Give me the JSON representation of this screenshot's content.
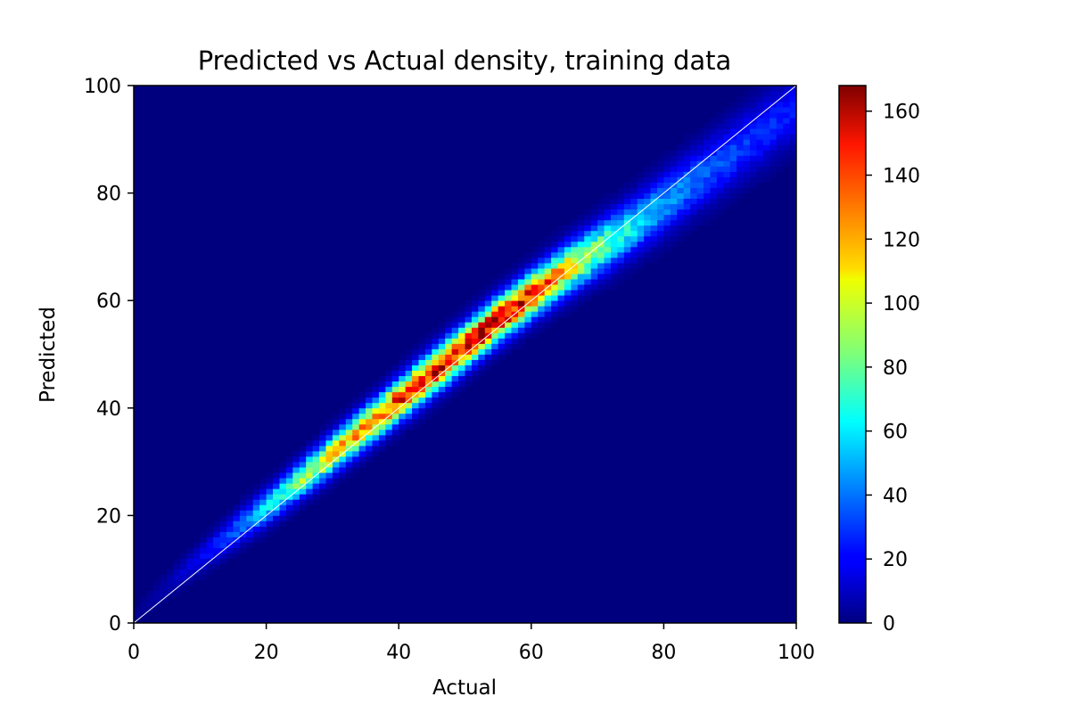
{
  "chart_data": {
    "type": "heatmap",
    "title": "Predicted vs Actual density, training data",
    "xlabel": "Actual",
    "ylabel": "Predicted",
    "xlim": [
      0,
      100
    ],
    "ylim": [
      0,
      100
    ],
    "x_ticks": [
      "0",
      "20",
      "40",
      "60",
      "80",
      "100"
    ],
    "y_ticks": [
      "0",
      "20",
      "40",
      "60",
      "80",
      "100"
    ],
    "colormap": "jet",
    "colorbar": {
      "range": [
        0,
        168
      ],
      "ticks": [
        "0",
        "20",
        "40",
        "60",
        "80",
        "100",
        "120",
        "140",
        "160"
      ]
    },
    "bins": 100,
    "background_value": 0,
    "reference_line": {
      "from": [
        0,
        0
      ],
      "to": [
        100,
        100
      ],
      "color": "#ffffff"
    },
    "density_ridge": [
      {
        "actual": 0,
        "predicted_center": 1,
        "count": 2,
        "spread": 1.2
      },
      {
        "actual": 5,
        "predicted_center": 7,
        "count": 8,
        "spread": 1.5
      },
      {
        "actual": 10,
        "predicted_center": 12,
        "count": 18,
        "spread": 1.8
      },
      {
        "actual": 15,
        "predicted_center": 17,
        "count": 35,
        "spread": 2.0
      },
      {
        "actual": 20,
        "predicted_center": 21.5,
        "count": 58,
        "spread": 2.1
      },
      {
        "actual": 25,
        "predicted_center": 26.5,
        "count": 85,
        "spread": 2.2
      },
      {
        "actual": 30,
        "predicted_center": 31.5,
        "count": 110,
        "spread": 2.3
      },
      {
        "actual": 35,
        "predicted_center": 36.5,
        "count": 125,
        "spread": 2.4
      },
      {
        "actual": 40,
        "predicted_center": 41.5,
        "count": 138,
        "spread": 2.5
      },
      {
        "actual": 45,
        "predicted_center": 46.5,
        "count": 150,
        "spread": 2.6
      },
      {
        "actual": 50,
        "predicted_center": 51.5,
        "count": 158,
        "spread": 2.6
      },
      {
        "actual": 55,
        "predicted_center": 56.5,
        "count": 160,
        "spread": 2.6
      },
      {
        "actual": 60,
        "predicted_center": 61.0,
        "count": 145,
        "spread": 2.7
      },
      {
        "actual": 65,
        "predicted_center": 65.5,
        "count": 115,
        "spread": 2.9
      },
      {
        "actual": 70,
        "predicted_center": 69.5,
        "count": 85,
        "spread": 3.1
      },
      {
        "actual": 75,
        "predicted_center": 73.5,
        "count": 62,
        "spread": 3.3
      },
      {
        "actual": 80,
        "predicted_center": 78.0,
        "count": 48,
        "spread": 3.5
      },
      {
        "actual": 85,
        "predicted_center": 82.5,
        "count": 38,
        "spread": 3.7
      },
      {
        "actual": 90,
        "predicted_center": 87.0,
        "count": 32,
        "spread": 3.9
      },
      {
        "actual": 95,
        "predicted_center": 91.5,
        "count": 28,
        "spread": 4.0
      },
      {
        "actual": 100,
        "predicted_center": 96.0,
        "count": 24,
        "spread": 4.1
      }
    ]
  }
}
